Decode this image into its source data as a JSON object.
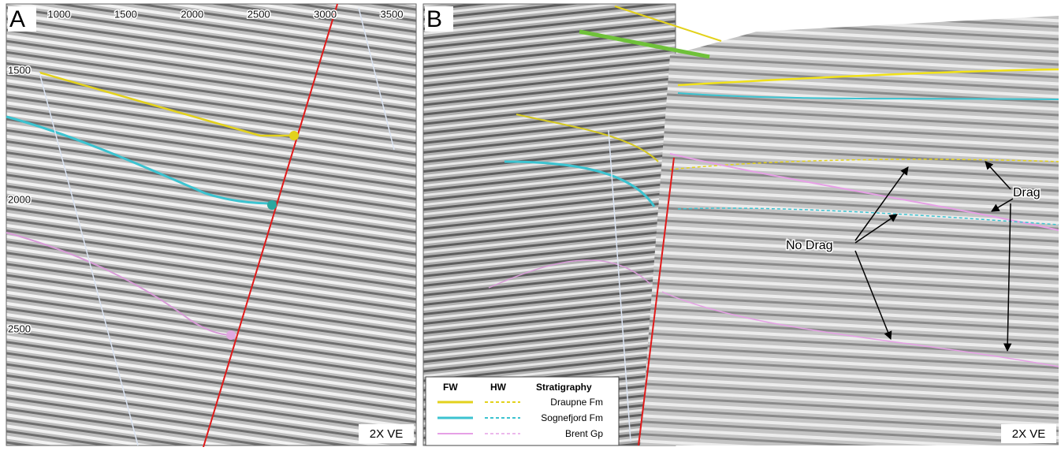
{
  "panels": [
    {
      "label": "A",
      "xticks": [
        1000,
        1500,
        2000,
        2500,
        3000,
        3500
      ],
      "yticks": [
        1500,
        2000,
        2500
      ],
      "scale_note": "2X VE"
    },
    {
      "label": "B",
      "legend": {
        "headers": [
          "FW",
          "HW",
          "Stratigraphy"
        ],
        "entries": [
          "Draupne Fm",
          "Sognefjord Fm",
          "Brent Gp"
        ]
      },
      "annotations": [
        "Drag",
        "No Drag"
      ],
      "scale_note": "2X VE"
    }
  ]
}
